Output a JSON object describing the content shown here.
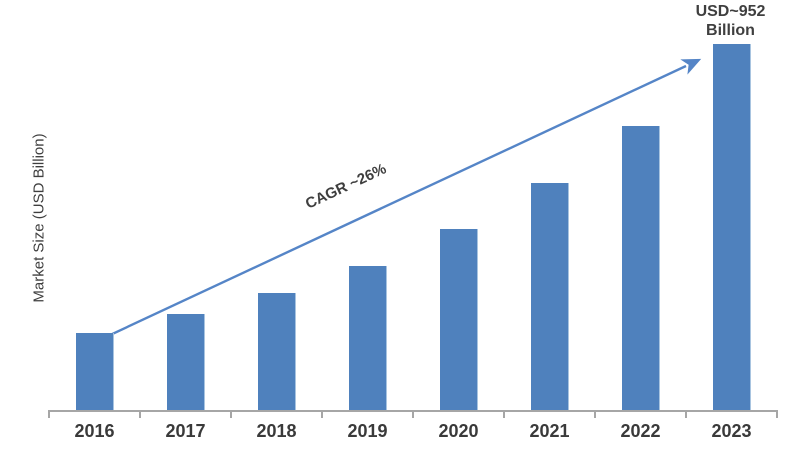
{
  "chart_data": {
    "type": "bar",
    "title": "",
    "xlabel": "",
    "ylabel": "Market Size (USD Billion)",
    "unit": "USD Billion",
    "categories": [
      "2016",
      "2017",
      "2018",
      "2019",
      "2020",
      "2021",
      "2022",
      "2023"
    ],
    "values": [
      200,
      250,
      305,
      375,
      470,
      590,
      740,
      952
    ],
    "ylim": [
      0,
      1000
    ],
    "grid": false,
    "legend": false,
    "y_axis_ticks_visible": false,
    "annotations": [
      {
        "text": "CAGR ~26%",
        "kind": "trend-arrow-label"
      },
      {
        "text": "USD~952 Billion",
        "kind": "peak-value-label",
        "target_category": "2023"
      }
    ],
    "colors": {
      "bar": "#4f81bd",
      "trend_arrow": "#5585c7",
      "axis": "#a6a6a6",
      "text": "#3f3f3f"
    }
  }
}
